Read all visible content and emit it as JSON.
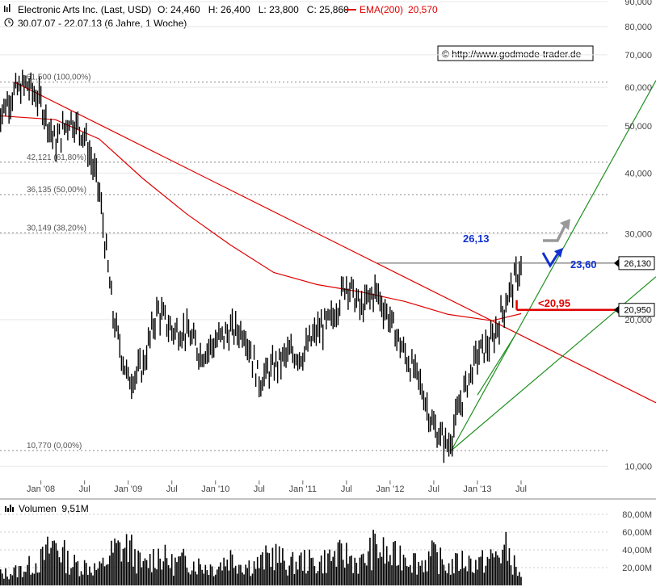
{
  "header": {
    "icon": "bar-chart-icon",
    "instrument": "Electronic Arts Inc. (Last, USD)",
    "ohlc": "O: 24,460   H: 26,400   L: 23,800   C: 25,860",
    "ema_label": "EMA(200)",
    "ema_value": "20,570",
    "ema_color": "#e00000",
    "period": "30.07.07 - 22.07.13 (6 Jahre, 1 Woche)",
    "clock_icon": "clock-icon"
  },
  "copyright": "© http://www.godmode-trader.de",
  "chart_data": [
    {
      "type": "line",
      "subtype": "candlestick-weekly",
      "scale": "log",
      "ylim": [
        9.0,
        90.0
      ],
      "y_ticks": [
        "10,000",
        "20,000",
        "30,000",
        "40,000",
        "50,000",
        "60,000",
        "70,000",
        "80,000",
        "90,000"
      ],
      "x_ticks": [
        "Jan '08",
        "Jul",
        "Jan '09",
        "Jul",
        "Jan '10",
        "Jul",
        "Jan '11",
        "Jul",
        "Jan '12",
        "Jul",
        "Jan '13",
        "Jul"
      ],
      "series": [
        {
          "name": "Electronic Arts Inc.",
          "color": "#000000",
          "x": [
            "2007-07",
            "2007-09",
            "2007-11",
            "2008-01",
            "2008-03",
            "2008-05",
            "2008-07",
            "2008-09",
            "2008-11",
            "2009-01",
            "2009-03",
            "2009-05",
            "2009-07",
            "2009-09",
            "2009-11",
            "2010-01",
            "2010-03",
            "2010-05",
            "2010-07",
            "2010-09",
            "2010-11",
            "2011-01",
            "2011-03",
            "2011-05",
            "2011-07",
            "2011-09",
            "2011-11",
            "2012-01",
            "2012-03",
            "2012-05",
            "2012-07",
            "2012-09",
            "2012-11",
            "2013-01",
            "2013-03",
            "2013-05",
            "2013-07"
          ],
          "values": [
            52,
            58,
            61,
            56,
            46,
            52,
            48,
            37,
            20,
            15,
            16,
            21,
            19,
            19,
            17,
            18,
            19,
            19,
            15,
            16,
            17,
            17,
            19,
            20,
            24,
            21,
            23,
            20,
            17,
            15,
            12,
            11,
            14,
            17,
            18,
            22,
            25.86
          ]
        },
        {
          "name": "EMA(200)",
          "color": "#e00000",
          "x": [
            "2007-07",
            "2008-03",
            "2008-09",
            "2009-03",
            "2009-09",
            "2010-03",
            "2010-09",
            "2011-03",
            "2011-09",
            "2012-03",
            "2012-09",
            "2013-03",
            "2013-07"
          ],
          "values": [
            52.5,
            51.5,
            47,
            39,
            33,
            28.5,
            25,
            23.6,
            22.8,
            21.8,
            20.5,
            19.9,
            20.57
          ]
        }
      ],
      "fibonacci": [
        {
          "label": "61,500 (100,00%)",
          "value": 61.5
        },
        {
          "label": "42,121 (61,80%)",
          "value": 42.121
        },
        {
          "label": "36,135 (50,00%)",
          "value": 36.135
        },
        {
          "label": "30,149 (38,20%)",
          "value": 30.149
        },
        {
          "label": "10,770 (0,00%)",
          "value": 10.77
        }
      ],
      "annotations": [
        {
          "text": "26,13",
          "color": "#1030d0",
          "value": 26.13
        },
        {
          "text": "23,60",
          "color": "#1030d0",
          "value": 23.6
        },
        {
          "text": "<20,95",
          "color": "#e00000",
          "value": 20.95
        }
      ],
      "price_boxes": [
        {
          "label": "26,130",
          "value": 26.13
        },
        {
          "label": "20,950",
          "value": 20.95
        }
      ],
      "trendlines": {
        "downtrend_color": "#e00000",
        "uptrend_color": "#209020"
      }
    },
    {
      "type": "bar",
      "title": "Volumen  9,51M",
      "ylim": [
        0,
        90
      ],
      "y_ticks": [
        "20,00M",
        "40,00M",
        "60,00M",
        "80,00M"
      ],
      "color": "#000000",
      "series": [
        {
          "name": "Volumen",
          "x": [
            "2007-07",
            "2007-09",
            "2007-11",
            "2008-01",
            "2008-03",
            "2008-05",
            "2008-07",
            "2008-09",
            "2008-11",
            "2009-01",
            "2009-03",
            "2009-05",
            "2009-07",
            "2009-09",
            "2009-11",
            "2010-01",
            "2010-03",
            "2010-05",
            "2010-07",
            "2010-09",
            "2010-11",
            "2011-01",
            "2011-03",
            "2011-05",
            "2011-07",
            "2011-09",
            "2011-11",
            "2012-01",
            "2012-03",
            "2012-05",
            "2012-07",
            "2012-09",
            "2012-11",
            "2013-01",
            "2013-03",
            "2013-05",
            "2013-07"
          ],
          "values": [
            15,
            18,
            25,
            35,
            60,
            30,
            28,
            22,
            48,
            55,
            25,
            45,
            30,
            35,
            28,
            25,
            40,
            28,
            30,
            45,
            28,
            35,
            30,
            40,
            42,
            30,
            55,
            38,
            45,
            30,
            42,
            25,
            35,
            30,
            38,
            50,
            9.51
          ]
        }
      ]
    }
  ]
}
